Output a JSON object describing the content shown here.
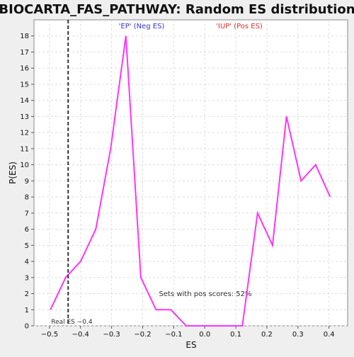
{
  "chart_data": {
    "type": "line",
    "title": "BIOCARTA_FAS_PATHWAY: Random ES distribution",
    "xlabel": "ES",
    "ylabel": "P(ES)",
    "xlim": [
      -0.55,
      0.46
    ],
    "ylim": [
      0,
      19
    ],
    "x_ticks": [
      -0.5,
      -0.4,
      -0.3,
      -0.2,
      -0.1,
      0.0,
      0.1,
      0.2,
      0.3,
      0.4
    ],
    "x_tick_labels": [
      "−0.5",
      "−0.4",
      "−0.3",
      "−0.2",
      "−0.1",
      "0.0",
      "0.1",
      "0.2",
      "0.3",
      "0.4"
    ],
    "y_ticks": [
      0,
      1,
      2,
      3,
      4,
      5,
      6,
      7,
      8,
      9,
      10,
      11,
      12,
      13,
      14,
      15,
      16,
      17,
      18
    ],
    "grid": true,
    "series": [
      {
        "name": "",
        "color": "#ff33ff",
        "x": [
          -0.497,
          -0.448,
          -0.4,
          -0.351,
          -0.303,
          -0.254,
          -0.206,
          -0.157,
          -0.109,
          -0.06,
          -0.012,
          0.037,
          0.085,
          0.121,
          0.17,
          0.218,
          0.263,
          0.31,
          0.357,
          0.404
        ],
        "y": [
          1,
          3,
          4,
          6,
          11,
          18,
          3,
          1,
          1,
          0,
          0,
          0,
          0,
          0,
          7,
          5,
          13,
          9,
          10,
          8
        ]
      }
    ],
    "real_es": {
      "value": -0.44,
      "label": "Real ES −0.4"
    },
    "annotations": {
      "neg_label": "'EP' (Neg ES)",
      "pos_label": "'IUP' (Pos ES)",
      "pos_scores_text": "Sets with pos scores: 52%"
    },
    "colors": {
      "neg_label": "#3333cc",
      "pos_label": "#e03030",
      "grid": "#dddddd",
      "line": "#ff33ff"
    }
  }
}
